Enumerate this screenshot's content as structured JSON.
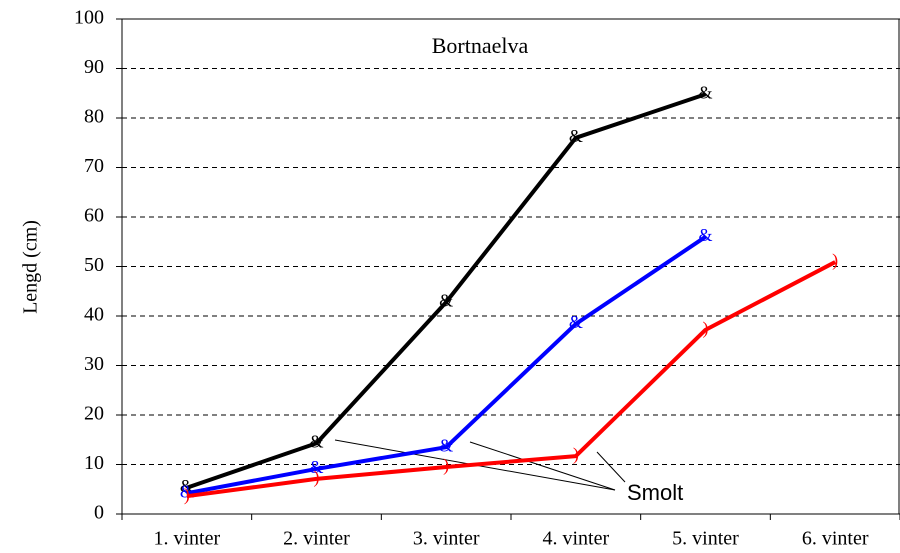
{
  "chart_data": {
    "type": "line",
    "title": "Bortnaelva",
    "y_label": "Lengd (cm)",
    "annotation": "Smolt",
    "categories": [
      "1. vinter",
      "2. vinter",
      "3. vinter",
      "4. vinter",
      "5. vinter",
      "6. vinter"
    ],
    "series": [
      {
        "color": "#000000",
        "marker": "&",
        "values": [
          5.3,
          14.3,
          42.8,
          76,
          84.8,
          null
        ]
      },
      {
        "color": "#0000ff",
        "marker": "&",
        "values": [
          4.2,
          9.1,
          13.5,
          38.4,
          56,
          null
        ]
      },
      {
        "color": "#ff0000",
        "marker": ")",
        "values": [
          3.6,
          7.1,
          9.5,
          11.7,
          37.2,
          50.9
        ]
      }
    ],
    "ylim": [
      0,
      100
    ],
    "yticks": [
      0,
      10,
      20,
      30,
      40,
      50,
      60,
      70,
      80,
      90,
      100
    ],
    "grid": true
  }
}
